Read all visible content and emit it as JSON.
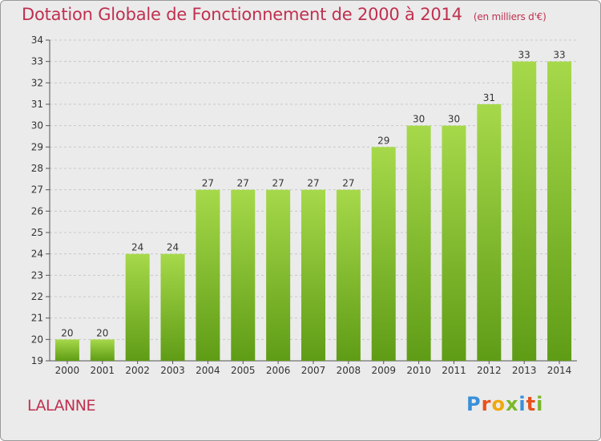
{
  "header": {
    "title": "Dotation Globale de Fonctionnement de 2000 à 2014",
    "unit": "(en milliers d'€)"
  },
  "footer": {
    "place": "LALANNE",
    "logo_text": "Proxiti",
    "logo_colors": [
      "#3a8fd8",
      "#e8501c",
      "#f0a80c",
      "#7ab82a",
      "#3a8fd8",
      "#e8501c",
      "#7ab82a"
    ]
  },
  "colors": {
    "bar_light": "#a6d94a",
    "bar_dark": "#5f9c16",
    "title": "#c0304f"
  },
  "chart_data": {
    "type": "bar",
    "title": "Dotation Globale de Fonctionnement de 2000 à 2014",
    "subtitle": "(en milliers d'€)",
    "xlabel": "",
    "ylabel": "",
    "categories": [
      "2000",
      "2001",
      "2002",
      "2003",
      "2004",
      "2005",
      "2006",
      "2007",
      "2008",
      "2009",
      "2010",
      "2011",
      "2012",
      "2013",
      "2014"
    ],
    "values": [
      20,
      20,
      24,
      24,
      27,
      27,
      27,
      27,
      27,
      29,
      30,
      30,
      31,
      33,
      33
    ],
    "ylim": [
      19,
      34
    ],
    "yticks": [
      19,
      20,
      21,
      22,
      23,
      24,
      25,
      26,
      27,
      28,
      29,
      30,
      31,
      32,
      33,
      34
    ],
    "grid": true
  }
}
